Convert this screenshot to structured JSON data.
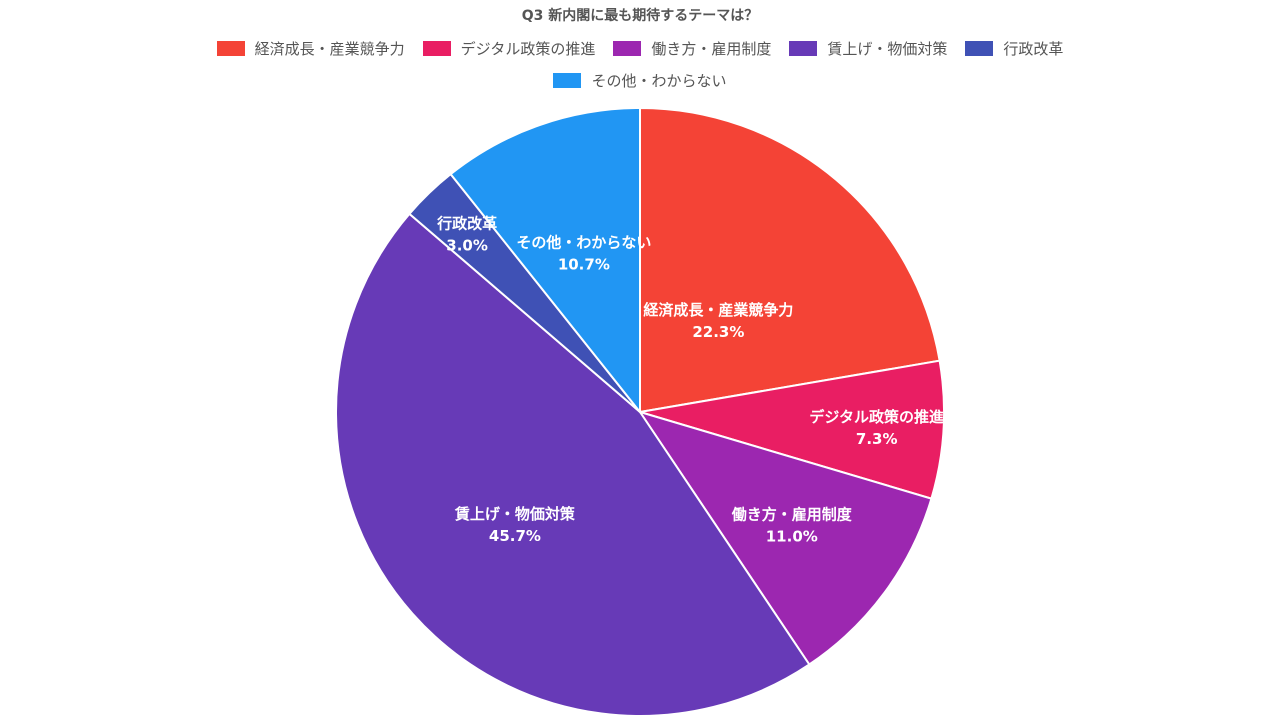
{
  "chart_data": {
    "type": "pie",
    "title": "Q3 新内閣に最も期待するテーマは？",
    "legend_position": "top",
    "slices": [
      {
        "label": "経済成長・産業競争力",
        "value": 22.3,
        "value_label": "22.3%",
        "color": "#f44336"
      },
      {
        "label": "デジタル政策の推進",
        "value": 7.3,
        "value_label": "7.3%",
        "color": "#e91e63"
      },
      {
        "label": "働き方・雇用制度",
        "value": 11.0,
        "value_label": "11.0%",
        "color": "#9c27b0"
      },
      {
        "label": "賃上げ・物価対策",
        "value": 45.7,
        "value_label": "45.7%",
        "color": "#673ab7"
      },
      {
        "label": "行政改革",
        "value": 3.0,
        "value_label": "3.0%",
        "color": "#3f51b5"
      },
      {
        "label": "その他・わからない",
        "value": 10.7,
        "value_label": "10.7%",
        "color": "#2196f3"
      }
    ]
  }
}
